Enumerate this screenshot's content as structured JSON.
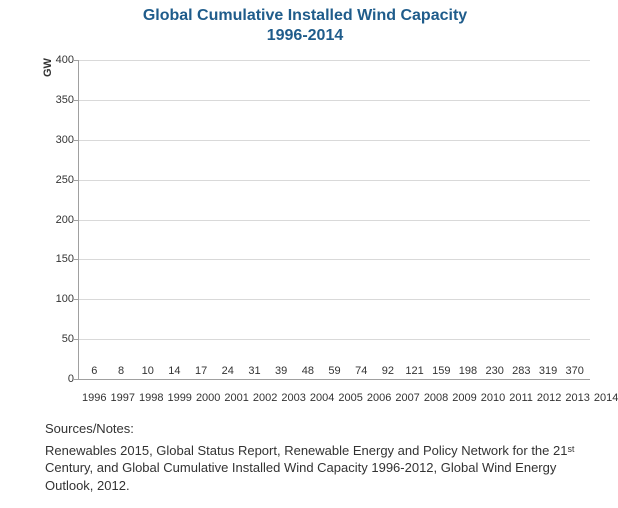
{
  "title_line1": "Global Cumulative Installed Wind Capacity",
  "title_line2": "1996-2014",
  "title_color": "#1f5c8b",
  "title_fontsize": 16,
  "chart": {
    "type": "bar",
    "ylabel": "GW",
    "ylabel_fontsize": 11,
    "categories": [
      "1996",
      "1997",
      "1998",
      "1999",
      "2000",
      "2001",
      "2002",
      "2003",
      "2004",
      "2005",
      "2006",
      "2007",
      "2008",
      "2009",
      "2010",
      "2011",
      "2012",
      "2013",
      "2014"
    ],
    "values": [
      6,
      8,
      10,
      14,
      17,
      24,
      31,
      39,
      48,
      59,
      74,
      92,
      121,
      159,
      198,
      230,
      283,
      319,
      370
    ],
    "bar_color": "#5ab4b8",
    "bar_label_fontsize": 11,
    "axis_label_fontsize": 11,
    "ylim": [
      0,
      400
    ],
    "ytick_step": 50,
    "grid_color": "#d9d9d9",
    "axis_color": "#a0a0a0",
    "background_color": "#ffffff",
    "text_color": "#333333",
    "bar_width": 0.7
  },
  "sources": {
    "heading": "Sources/Notes:",
    "text": "Renewables 2015, Global Status Report, Renewable Energy and Policy Network for the 21ˢᵗ Century, and Global Cumulative Installed Wind Capacity 1996-2012, Global Wind Energy Outlook, 2012."
  }
}
